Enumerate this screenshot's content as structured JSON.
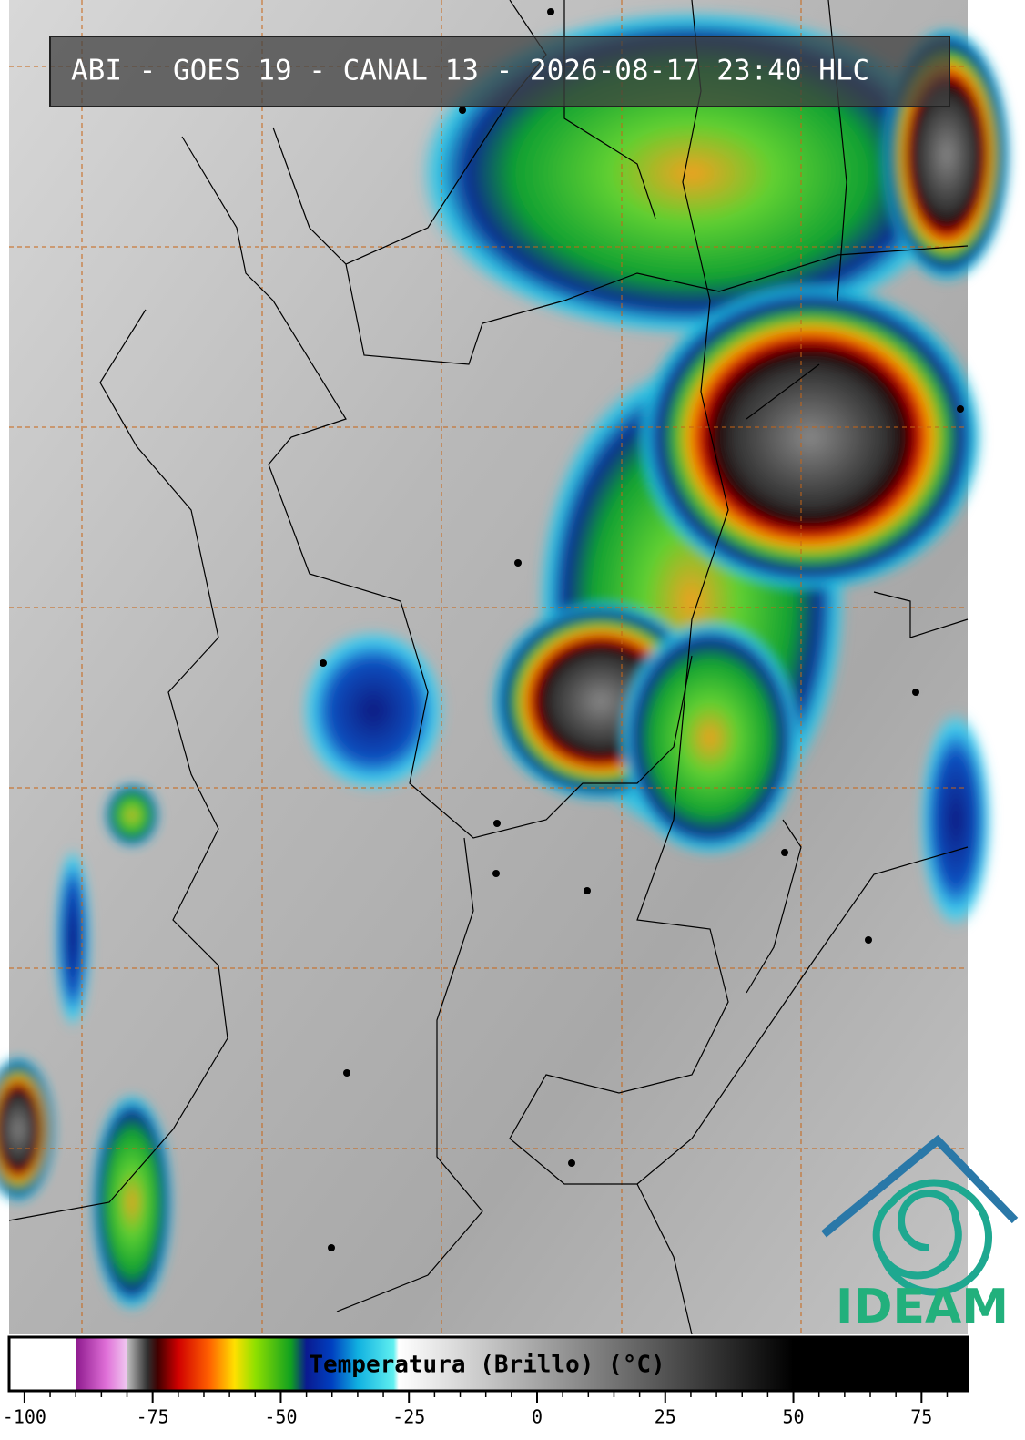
{
  "title": "ABI - GOES 19 - CANAL 13 - 2026-08-17 23:40 HLC",
  "colorbar": {
    "label": "Temperatura (Brillo) (°C)",
    "lim": [
      -103,
      84
    ],
    "ticks": [
      -100,
      -75,
      -50,
      -25,
      0,
      25,
      50,
      75
    ],
    "minor_step": 5,
    "colors": [
      [
        -103,
        "#ffffff"
      ],
      [
        -90,
        "#ffffff"
      ],
      [
        -90,
        "#8e1a8e"
      ],
      [
        -84,
        "#e070d8"
      ],
      [
        -80,
        "#f0c8f0"
      ],
      [
        -80,
        "#c0c0c0"
      ],
      [
        -76,
        "#303030"
      ],
      [
        -74,
        "#400000"
      ],
      [
        -70,
        "#d00000"
      ],
      [
        -64,
        "#ff6000"
      ],
      [
        -59,
        "#ffe000"
      ],
      [
        -55,
        "#90e000"
      ],
      [
        -48,
        "#10a020"
      ],
      [
        -45,
        "#0a1a90"
      ],
      [
        -40,
        "#0040c0"
      ],
      [
        -35,
        "#10b0e0"
      ],
      [
        -28,
        "#60f0f0"
      ],
      [
        -27,
        "#ffffff"
      ],
      [
        50,
        "#000000"
      ],
      [
        84,
        "#000000"
      ]
    ]
  },
  "logo": "IDEAM"
}
